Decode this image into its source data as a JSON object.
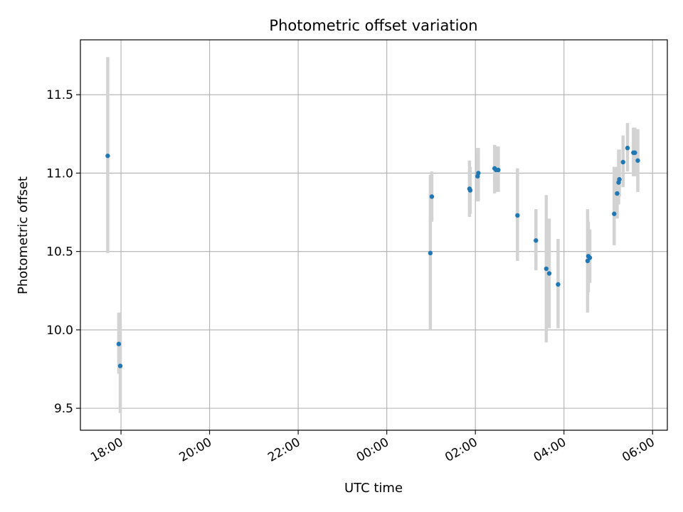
{
  "chart_data": {
    "type": "scatter",
    "title": "Photometric offset variation",
    "xlabel": "UTC time",
    "ylabel": "Photometric offset",
    "x_ticks": [
      "18:00",
      "20:00",
      "22:00",
      "00:00",
      "02:00",
      "04:00",
      "06:00"
    ],
    "y_ticks": [
      "9.5",
      "10.0",
      "10.5",
      "11.0",
      "11.5"
    ],
    "x_tick_values": [
      18,
      20,
      22,
      24,
      26,
      28,
      30
    ],
    "y_tick_values": [
      9.5,
      10.0,
      10.5,
      11.0,
      11.5
    ],
    "xlim": [
      "17:05",
      "30:20"
    ],
    "ylim": [
      9.36,
      11.85
    ],
    "grid": true,
    "point_color": "#1f77b4",
    "error_color": "#d3d3d3",
    "series": [
      {
        "x": [
          "17:42",
          "17:57",
          "17:59",
          "24:59",
          "25:01",
          "25:52",
          "25:53",
          "26:03",
          "26:04",
          "26:26",
          "26:28",
          "26:31",
          "26:57",
          "27:22",
          "27:36",
          "27:40",
          "27:52",
          "28:32",
          "28:33",
          "28:35",
          "29:08",
          "29:12",
          "29:14",
          "29:15",
          "29:20",
          "29:26",
          "29:34",
          "29:36",
          "29:40"
        ],
        "y": [
          11.11,
          9.91,
          9.77,
          10.49,
          10.85,
          10.9,
          10.89,
          10.98,
          11.0,
          11.03,
          11.02,
          11.02,
          10.73,
          10.57,
          10.39,
          10.36,
          10.29,
          10.44,
          10.47,
          10.46,
          10.74,
          10.87,
          10.94,
          10.96,
          11.07,
          11.16,
          11.13,
          11.13,
          11.08
        ],
        "yerr_low": [
          10.49,
          9.72,
          9.47,
          10.0,
          10.69,
          10.72,
          10.74,
          10.82,
          10.82,
          10.87,
          10.88,
          10.88,
          10.44,
          10.38,
          9.92,
          10.01,
          10.01,
          10.11,
          10.24,
          10.3,
          10.54,
          10.71,
          10.8,
          10.85,
          10.91,
          11.01,
          10.98,
          10.98,
          10.88
        ],
        "yerr_high": [
          11.74,
          10.11,
          10.07,
          10.99,
          11.01,
          11.08,
          11.04,
          11.16,
          11.16,
          11.18,
          11.17,
          11.17,
          11.03,
          10.77,
          10.86,
          10.71,
          10.58,
          10.77,
          10.69,
          10.64,
          11.04,
          11.04,
          11.15,
          11.15,
          11.24,
          11.32,
          11.29,
          11.29,
          11.28
        ]
      }
    ]
  }
}
